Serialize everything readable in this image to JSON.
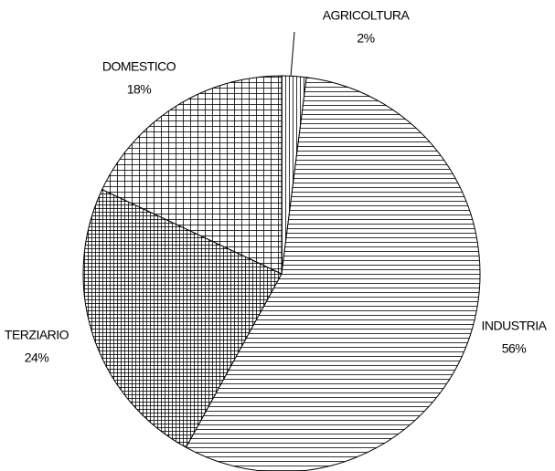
{
  "chart_data": {
    "type": "pie",
    "categories": [
      "AGRICOLTURA",
      "INDUSTRIA",
      "TERZIARIO",
      "DOMESTICO"
    ],
    "values": [
      2,
      56,
      24,
      18
    ],
    "value_labels": [
      "2%",
      "56%",
      "24%",
      "18%"
    ]
  }
}
